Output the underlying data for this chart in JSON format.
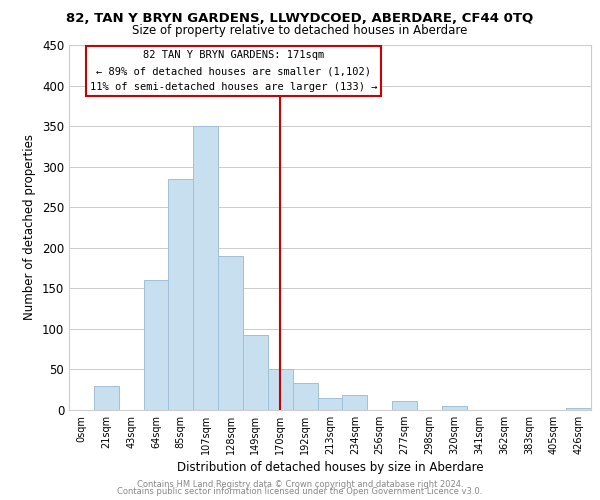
{
  "title": "82, TAN Y BRYN GARDENS, LLWYDCOED, ABERDARE, CF44 0TQ",
  "subtitle": "Size of property relative to detached houses in Aberdare",
  "xlabel": "Distribution of detached houses by size in Aberdare",
  "ylabel": "Number of detached properties",
  "bar_color": "#c8dff0",
  "bar_edge_color": "#a0bfd8",
  "tick_labels": [
    "0sqm",
    "21sqm",
    "43sqm",
    "64sqm",
    "85sqm",
    "107sqm",
    "128sqm",
    "149sqm",
    "170sqm",
    "192sqm",
    "213sqm",
    "234sqm",
    "256sqm",
    "277sqm",
    "298sqm",
    "320sqm",
    "341sqm",
    "362sqm",
    "383sqm",
    "405sqm",
    "426sqm"
  ],
  "bar_heights": [
    0,
    30,
    0,
    160,
    285,
    350,
    190,
    93,
    50,
    33,
    15,
    18,
    0,
    11,
    0,
    5,
    0,
    0,
    0,
    0,
    2
  ],
  "ylim": [
    0,
    450
  ],
  "yticks": [
    0,
    50,
    100,
    150,
    200,
    250,
    300,
    350,
    400,
    450
  ],
  "vline_x": 8.0,
  "vline_color": "#cc0000",
  "annotation_title": "82 TAN Y BRYN GARDENS: 171sqm",
  "annotation_line1": "← 89% of detached houses are smaller (1,102)",
  "annotation_line2": "11% of semi-detached houses are larger (133) →",
  "annotation_box_color": "#ffffff",
  "annotation_box_edge": "#cc0000",
  "footer_line1": "Contains HM Land Registry data © Crown copyright and database right 2024.",
  "footer_line2": "Contains public sector information licensed under the Open Government Licence v3.0.",
  "background_color": "#ffffff",
  "grid_color": "#cccccc"
}
